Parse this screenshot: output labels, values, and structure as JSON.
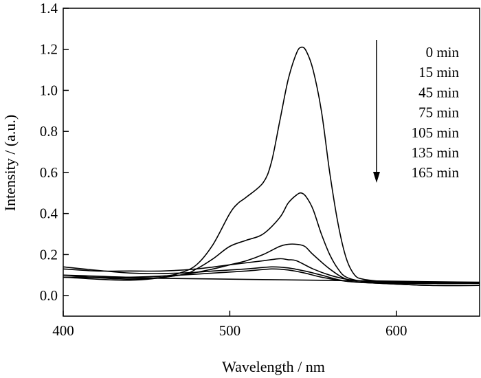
{
  "chart_data": {
    "type": "line",
    "title": "",
    "xlabel": "Wavelength / nm",
    "ylabel": "Intensity / (a.u.)",
    "xlim": [
      400,
      650
    ],
    "ylim": [
      -0.1,
      1.4
    ],
    "xticks": [
      400,
      500,
      600
    ],
    "xtick_labels": [
      "400",
      "500",
      "600"
    ],
    "yticks": [
      0.0,
      0.2,
      0.4,
      0.6,
      0.8,
      1.0,
      1.2,
      1.4
    ],
    "ytick_labels": [
      "0.0",
      "0.2",
      "0.4",
      "0.6",
      "0.8",
      "1.0",
      "1.2",
      "1.4"
    ],
    "grid": false,
    "line_color": "#000000",
    "legend_position": "top-right",
    "legend_arrow": "down",
    "series": [
      {
        "name": "0 min",
        "x": [
          400,
          420,
          440,
          460,
          470,
          480,
          490,
          500,
          505,
          510,
          520,
          525,
          530,
          535,
          540,
          543,
          546,
          550,
          555,
          560,
          565,
          570,
          575,
          580,
          590,
          600,
          620,
          650
        ],
        "y": [
          0.1,
          0.095,
          0.09,
          0.095,
          0.11,
          0.15,
          0.25,
          0.4,
          0.45,
          0.48,
          0.55,
          0.65,
          0.85,
          1.05,
          1.18,
          1.21,
          1.19,
          1.1,
          0.9,
          0.6,
          0.35,
          0.18,
          0.1,
          0.08,
          0.07,
          0.065,
          0.065,
          0.065
        ]
      },
      {
        "name": "15 min",
        "x": [
          400,
          440,
          470,
          480,
          490,
          500,
          510,
          520,
          530,
          535,
          540,
          543,
          546,
          550,
          555,
          560,
          565,
          570,
          580,
          600,
          650
        ],
        "y": [
          0.1,
          0.08,
          0.1,
          0.13,
          0.18,
          0.24,
          0.27,
          0.3,
          0.38,
          0.45,
          0.49,
          0.5,
          0.48,
          0.42,
          0.3,
          0.2,
          0.13,
          0.09,
          0.07,
          0.065,
          0.06
        ]
      },
      {
        "name": "45 min",
        "x": [
          400,
          440,
          470,
          490,
          500,
          510,
          520,
          530,
          535,
          540,
          545,
          550,
          560,
          570,
          580,
          600,
          650
        ],
        "y": [
          0.09,
          0.075,
          0.1,
          0.13,
          0.15,
          0.17,
          0.2,
          0.24,
          0.25,
          0.25,
          0.24,
          0.2,
          0.13,
          0.08,
          0.07,
          0.06,
          0.06
        ]
      },
      {
        "name": "75 min",
        "x": [
          400,
          420,
          440,
          460,
          480,
          500,
          520,
          530,
          535,
          540,
          550,
          560,
          570,
          580,
          600,
          650
        ],
        "y": [
          0.13,
          0.12,
          0.12,
          0.12,
          0.13,
          0.15,
          0.17,
          0.18,
          0.175,
          0.17,
          0.13,
          0.1,
          0.08,
          0.07,
          0.065,
          0.06
        ]
      },
      {
        "name": "105 min",
        "x": [
          400,
          440,
          470,
          490,
          510,
          525,
          535,
          545,
          555,
          570,
          590,
          620,
          650
        ],
        "y": [
          0.14,
          0.11,
          0.11,
          0.12,
          0.13,
          0.14,
          0.135,
          0.12,
          0.1,
          0.07,
          0.06,
          0.05,
          0.05
        ]
      },
      {
        "name": "135 min",
        "x": [
          400,
          440,
          470,
          490,
          510,
          525,
          535,
          545,
          555,
          570,
          590,
          620,
          650
        ],
        "y": [
          0.09,
          0.09,
          0.1,
          0.11,
          0.12,
          0.13,
          0.125,
          0.11,
          0.09,
          0.07,
          0.06,
          0.05,
          0.05
        ]
      },
      {
        "name": "165 min",
        "x": [
          400,
          450,
          500,
          550,
          600,
          650
        ],
        "y": [
          0.09,
          0.085,
          0.08,
          0.075,
          0.07,
          0.065
        ]
      }
    ]
  }
}
